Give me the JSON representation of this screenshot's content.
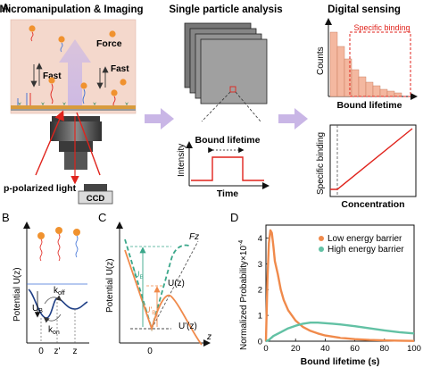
{
  "colors": {
    "chamber_bg": "#f4d8cc",
    "red": "#e0231c",
    "orange": "#f08a4b",
    "teal": "#62c1a4",
    "dashed_teal": "#3aa78a",
    "lavender": "#c9b6e6",
    "dark_gray": "#4a4a4a"
  },
  "panel_a": {
    "label": "A",
    "title_left": "Micromanipulation & Imaging",
    "title_mid": "Single particle analysis",
    "title_right": "Digital sensing",
    "force_label": "Force",
    "fast_left": "Fast",
    "fast_right": "Fast",
    "light_label": "p-polarized light",
    "ccd_label": "CCD",
    "trace_title": "Bound lifetime",
    "trace_ylabel": "Intensity",
    "trace_xlabel": "Time",
    "hist_ylabel": "Counts",
    "hist_xlabel": "Bound lifetime",
    "hist_annotation": "Specific binding",
    "calib_ylabel": "Specific binding",
    "calib_xlabel": "Concentration"
  },
  "panel_b": {
    "label": "B",
    "ylabel": "Potential U(z)",
    "ub_label": "U",
    "ub_sub": "B",
    "koff_label": "k",
    "koff_sub": "off",
    "kon_label": "k",
    "kon_sub": "on",
    "tick_0": "0",
    "tick_zp": "z'",
    "tick_z": "z"
  },
  "panel_c": {
    "label": "C",
    "ylabel": "Potential U(z)",
    "fz_label": "Fz",
    "uz_label": "U(z)",
    "upz_label": "U'(z)",
    "ub_label": "U",
    "ub_sub": "B",
    "ubp_label": "U'",
    "ubp_sub": "B",
    "tick_0": "0",
    "axis_z": "z"
  },
  "panel_d": {
    "label": "D"
  },
  "chart_data": {
    "type": "line",
    "xlabel": "Bound lifetime (s)",
    "ylabel": "Normalized Probability×10",
    "ylabel_exp": "-4",
    "xlim": [
      0,
      100
    ],
    "ylim": [
      0,
      4.5
    ],
    "xticks": [
      "0",
      "20",
      "40",
      "60",
      "80",
      "100"
    ],
    "yticks": [
      "0",
      "1",
      "2",
      "3",
      "4"
    ],
    "grid": false,
    "legend_position": "top-right",
    "series": [
      {
        "name": "Low energy barrier",
        "color": "#f08a4b",
        "x": [
          0,
          1,
          2,
          3,
          4,
          5,
          6,
          8,
          10,
          12,
          15,
          20,
          25,
          30,
          35,
          40,
          50,
          60,
          70,
          80,
          90,
          100
        ],
        "y": [
          0,
          2.4,
          3.8,
          4.3,
          4.2,
          3.7,
          3.1,
          2.6,
          2.0,
          1.6,
          1.2,
          0.8,
          0.55,
          0.4,
          0.3,
          0.22,
          0.13,
          0.08,
          0.05,
          0.03,
          0.02,
          0.01
        ]
      },
      {
        "name": "High energy barrier",
        "color": "#62c1a4",
        "x": [
          0,
          2,
          5,
          10,
          15,
          20,
          25,
          30,
          35,
          40,
          45,
          50,
          60,
          70,
          80,
          90,
          100
        ],
        "y": [
          0,
          0.05,
          0.2,
          0.35,
          0.5,
          0.6,
          0.68,
          0.72,
          0.72,
          0.7,
          0.68,
          0.65,
          0.58,
          0.5,
          0.42,
          0.35,
          0.3
        ]
      }
    ]
  }
}
